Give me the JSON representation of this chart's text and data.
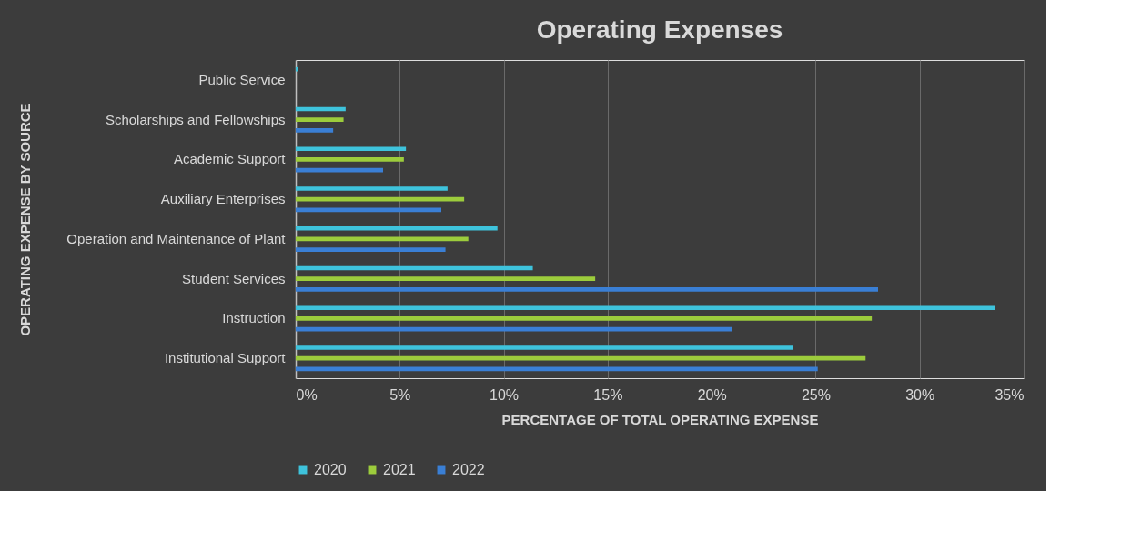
{
  "chart_data": {
    "type": "bar",
    "orientation": "horizontal",
    "title": "Operating  Expenses",
    "xlabel": "PERCENTAGE OF TOTAL OPERATING EXPENSE",
    "ylabel": "OPERATING EXPENSE BY SOURCE",
    "categories": [
      "Public Service",
      "Scholarships and Fellowships",
      "Academic Support",
      "Auxiliary Enterprises",
      "Operation and Maintenance of Plant",
      "Student Services",
      "Instruction",
      "Institutional Support"
    ],
    "series": [
      {
        "name": "2020",
        "color": "#3ec3dc",
        "values": [
          0.1,
          2.4,
          5.3,
          7.3,
          9.7,
          11.4,
          33.6,
          23.9
        ]
      },
      {
        "name": "2021",
        "color": "#9ccc3c",
        "values": [
          0.0,
          2.3,
          5.2,
          8.1,
          8.3,
          14.4,
          27.7,
          27.4
        ]
      },
      {
        "name": "2022",
        "color": "#3a7fd5",
        "values": [
          0.0,
          1.8,
          4.2,
          7.0,
          7.2,
          28.0,
          21.0,
          25.1
        ]
      }
    ],
    "xlim": [
      0,
      35
    ],
    "xticks": [
      {
        "value": 0,
        "label": "0%"
      },
      {
        "value": 5,
        "label": "5%"
      },
      {
        "value": 10,
        "label": "10%"
      },
      {
        "value": 15,
        "label": "15%"
      },
      {
        "value": 20,
        "label": "20%"
      },
      {
        "value": 25,
        "label": "25%"
      },
      {
        "value": 30,
        "label": "30%"
      },
      {
        "value": 35,
        "label": "35%"
      }
    ],
    "grid": "x",
    "legend": "bottom"
  }
}
